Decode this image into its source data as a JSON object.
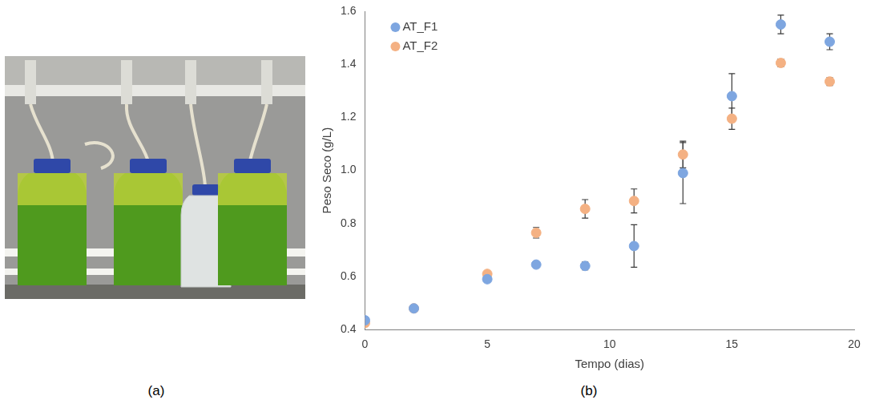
{
  "panel_labels": [
    "(a)",
    "(b)"
  ],
  "chart_data": {
    "type": "scatter",
    "x_label": "Tempo (dias)",
    "y_label": "Peso Seco (g/L)",
    "x": [
      0,
      2,
      5,
      7,
      9,
      11,
      13,
      15,
      17,
      19
    ],
    "series": [
      {
        "name": "AT_F1",
        "color": "#7ea6e0",
        "marker": "circle",
        "values": [
          0.435,
          0.48,
          0.59,
          0.645,
          0.64,
          0.715,
          0.99,
          1.28,
          1.55,
          1.485
        ],
        "errors": [
          0.005,
          0.005,
          0.005,
          0.01,
          0.015,
          0.08,
          0.115,
          0.085,
          0.035,
          0.03
        ]
      },
      {
        "name": "AT_F2",
        "color": "#f4b183",
        "marker": "circle",
        "values": [
          0.425,
          0.48,
          0.61,
          0.765,
          0.855,
          0.885,
          1.06,
          1.195,
          1.405,
          1.335
        ],
        "errors": [
          0.005,
          0.005,
          0.005,
          0.02,
          0.035,
          0.045,
          0.05,
          0.04,
          0.015,
          0.015
        ]
      }
    ],
    "xlim": [
      0,
      20
    ],
    "xticks": [
      0,
      5,
      10,
      15,
      20
    ],
    "ylim": [
      0.4,
      1.6
    ],
    "yticks": [
      0.4,
      0.6,
      0.8,
      {
        "value": 1.0,
        "label": "1.0"
      },
      1.2,
      1.4,
      1.6
    ],
    "grid": false,
    "legend": "upper left"
  }
}
